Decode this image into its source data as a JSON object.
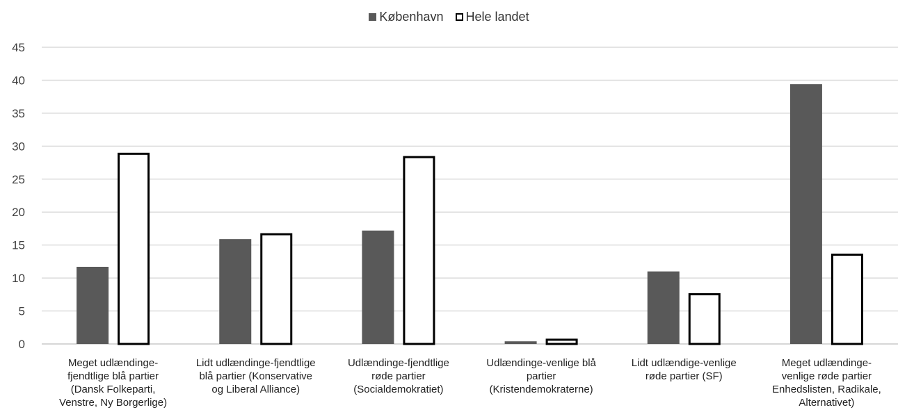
{
  "chart_data": {
    "type": "bar",
    "categories": [
      [
        "Meget udlændinge-",
        "fjendtlige blå partier",
        "(Dansk Folkeparti,",
        "Venstre, Ny Borgerlige)"
      ],
      [
        "Lidt udlændinge-fjendtlige",
        "blå partier (Konservative",
        "og Liberal Alliance)"
      ],
      [
        "Udlændinge-fjendtlige",
        "røde partier",
        "(Socialdemokratiet)"
      ],
      [
        "Udlændinge-venlige blå",
        "partier",
        "(Kristendemokraterne)"
      ],
      [
        "Lidt udlændige-venlige",
        "røde partier (SF)"
      ],
      [
        "Meget udlændinge-",
        "venlige røde partier",
        "Enhedslisten, Radikale,",
        "Alternativet)"
      ]
    ],
    "series": [
      {
        "name": "København",
        "color": "#595959",
        "values": [
          11.7,
          15.9,
          17.2,
          0.4,
          11.0,
          39.4
        ]
      },
      {
        "name": "Hele landet",
        "color": "#ffffff",
        "values": [
          29.0,
          16.8,
          28.5,
          0.8,
          7.7,
          13.7
        ]
      }
    ],
    "ylim": [
      0,
      45
    ],
    "yticks": [
      0,
      5,
      10,
      15,
      20,
      25,
      30,
      35,
      40,
      45
    ],
    "grid": true,
    "legend_position": "top-center"
  }
}
